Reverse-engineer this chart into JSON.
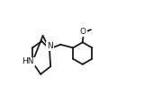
{
  "bg_color": "#ffffff",
  "line_color": "#1a1a1a",
  "line_width": 1.3,
  "NH_label": "HN",
  "N_label": "N",
  "O_label": "O",
  "figsize": [
    1.7,
    1.24
  ],
  "dpi": 100,
  "font_size": 6.5
}
